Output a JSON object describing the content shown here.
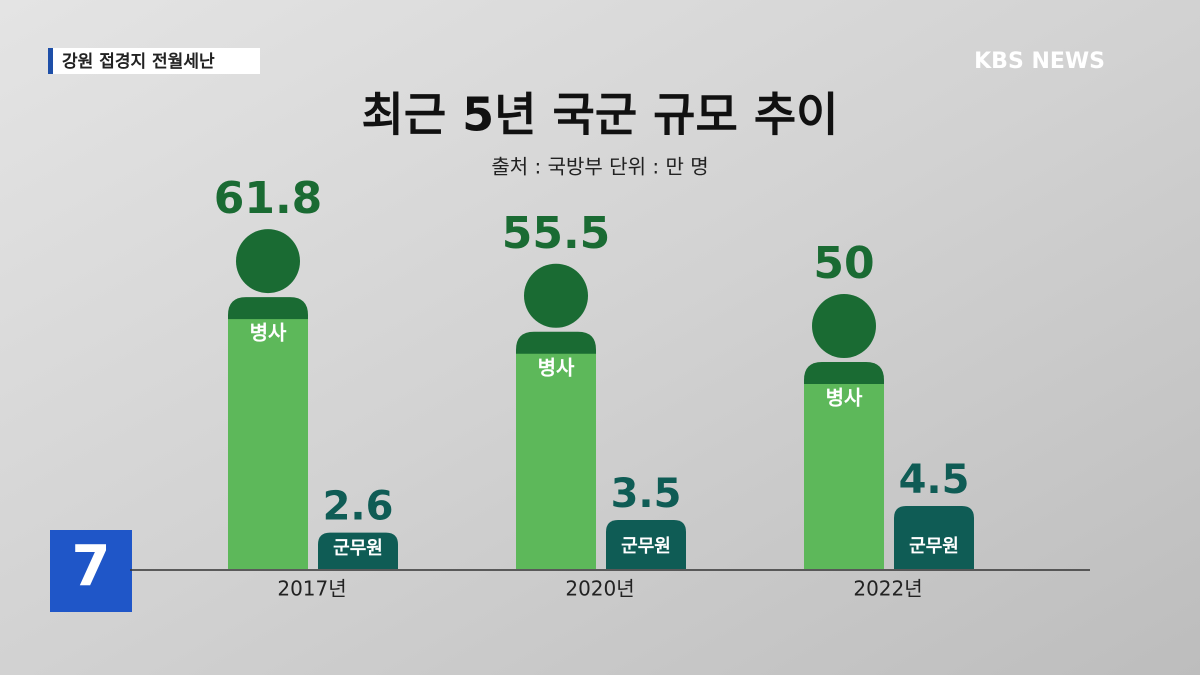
{
  "header": {
    "tag": "강원 접경지 전월세난",
    "logo": "KBS NEWS",
    "channel": "7"
  },
  "chart_data": {
    "type": "bar",
    "title": "최근 5년 국군 규모 추이",
    "subtitle": "출처 : 국방부  단위 : 만 명",
    "categories": [
      "2017년",
      "2020년",
      "2022년"
    ],
    "series": [
      {
        "name": "병사",
        "color": "#5db85a",
        "values": [
          61.8,
          55.5,
          50
        ]
      },
      {
        "name": "군무원",
        "color": "#0f5c55",
        "values": [
          2.6,
          3.5,
          4.5
        ]
      }
    ]
  }
}
